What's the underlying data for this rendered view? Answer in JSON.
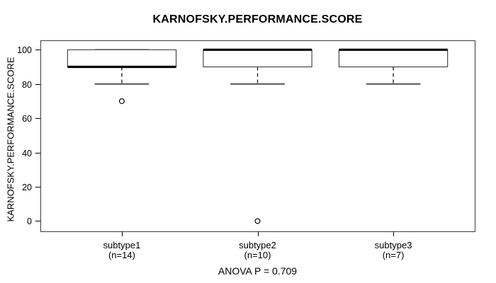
{
  "figure": {
    "title": "KARNOFSKY.PERFORMANCE.SCORE",
    "ylabel": "KARNOFSKY.PERFORMANCE.SCORE",
    "footer": "ANOVA P = 0.709"
  },
  "chart_data": {
    "type": "boxplot",
    "title": "KARNOFSKY.PERFORMANCE.SCORE",
    "xlabel": "",
    "ylabel": "KARNOFSKY.PERFORMANCE.SCORE",
    "annotation": "ANOVA P = 0.709",
    "ylim": [
      -6,
      105.5
    ],
    "y_ticks": [
      0,
      20,
      40,
      60,
      80,
      100
    ],
    "grid": false,
    "legend": "none",
    "categories": [
      "subtype1",
      "subtype2",
      "subtype3"
    ],
    "category_sublabels": [
      "(n=14)",
      "(n=10)",
      "(n=7)"
    ],
    "series": [
      {
        "name": "subtype1",
        "n": 14,
        "whisker_low": 80,
        "q1": 90,
        "median": 90,
        "q3": 100,
        "whisker_high": 100,
        "outliers": [
          70
        ]
      },
      {
        "name": "subtype2",
        "n": 10,
        "whisker_low": 80,
        "q1": 90,
        "median": 100,
        "q3": 100,
        "whisker_high": 100,
        "outliers": [
          0
        ]
      },
      {
        "name": "subtype3",
        "n": 7,
        "whisker_low": 80,
        "q1": 90,
        "median": 100,
        "q3": 100,
        "whisker_high": 100,
        "outliers": []
      }
    ],
    "colors": {
      "line": "#000000",
      "box_fill": "#ffffff",
      "background": "#ffffff"
    }
  }
}
